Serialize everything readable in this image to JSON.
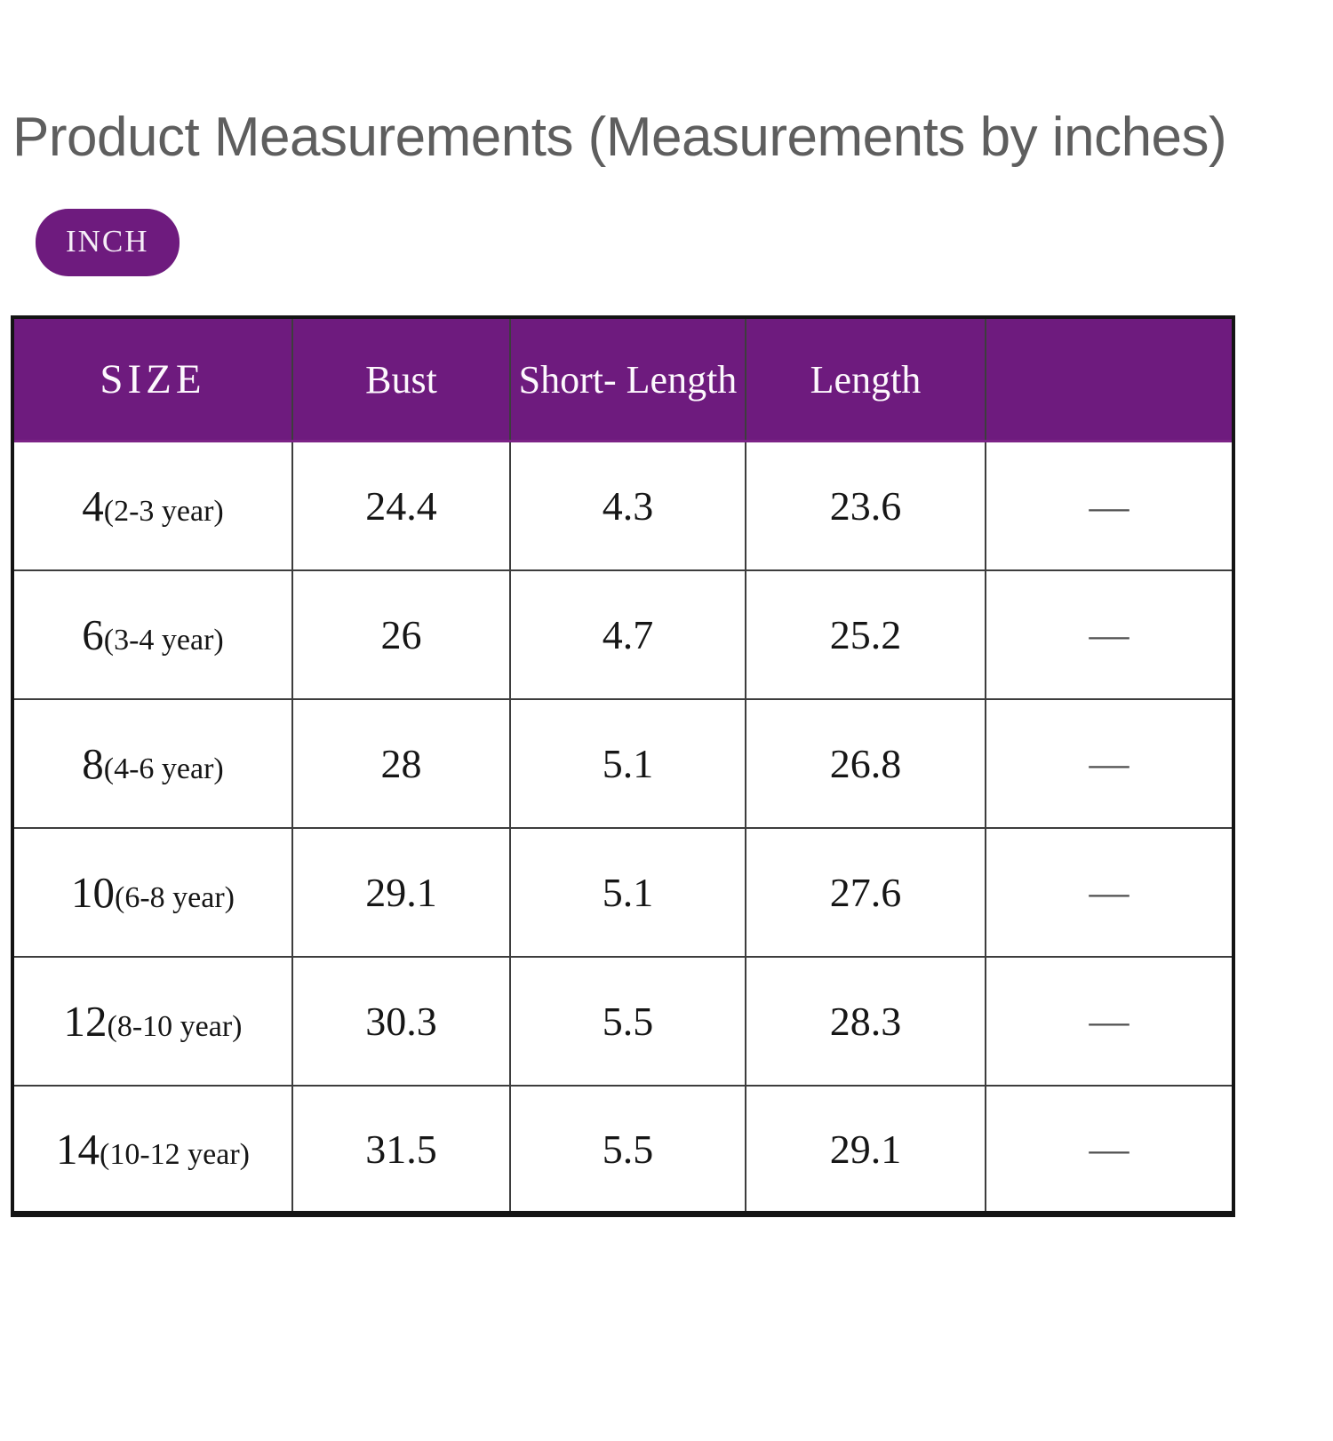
{
  "title": "Product Measurements (Measurements by inches)",
  "unit_badge": {
    "label": "INCH"
  },
  "colors": {
    "accent_purple": "#6e1b7e",
    "title_gray": "#5e5e5e",
    "grid_line": "#3d3d3d",
    "outer_border": "#141414",
    "dash_gray": "#4f4f4f"
  },
  "table": {
    "columns": [
      "SIZE",
      "Bust",
      "Short- Length",
      "Length",
      ""
    ],
    "rows": [
      {
        "size": "4",
        "age": "(2-3 year)",
        "bust": "24.4",
        "short_length": "4.3",
        "length": "23.6",
        "extra": "—"
      },
      {
        "size": "6",
        "age": "(3-4 year)",
        "bust": "26",
        "short_length": "4.7",
        "length": "25.2",
        "extra": "—"
      },
      {
        "size": "8",
        "age": "(4-6 year)",
        "bust": "28",
        "short_length": "5.1",
        "length": "26.8",
        "extra": "—"
      },
      {
        "size": "10",
        "age": "(6-8 year)",
        "bust": "29.1",
        "short_length": "5.1",
        "length": "27.6",
        "extra": "—"
      },
      {
        "size": "12",
        "age": "(8-10 year)",
        "bust": "30.3",
        "short_length": "5.5",
        "length": "28.3",
        "extra": "—"
      },
      {
        "size": "14",
        "age": "(10-12 year)",
        "bust": "31.5",
        "short_length": "5.5",
        "length": "29.1",
        "extra": "—"
      }
    ]
  }
}
